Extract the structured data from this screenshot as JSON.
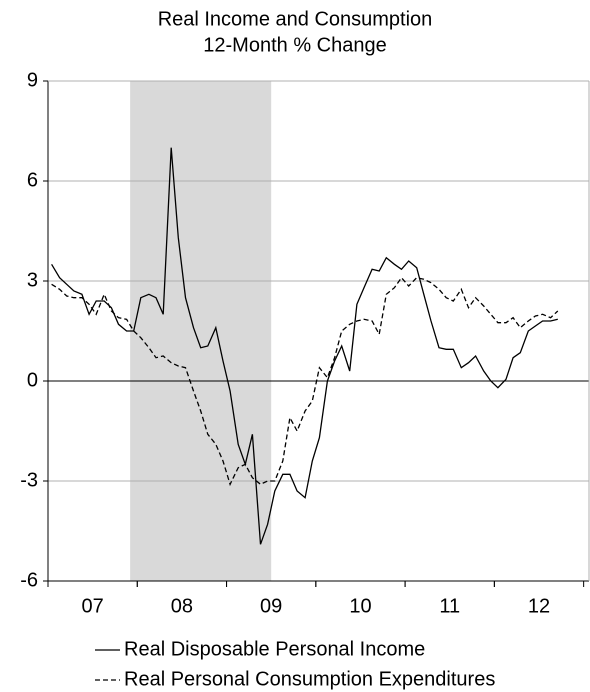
{
  "chart_data": {
    "type": "line",
    "title": "Real Income and Consumption",
    "subtitle": "12-Month % Change",
    "x": [
      2007.04,
      2007.13,
      2007.21,
      2007.29,
      2007.38,
      2007.46,
      2007.54,
      2007.63,
      2007.71,
      2007.79,
      2007.88,
      2007.96,
      2008.04,
      2008.13,
      2008.21,
      2008.29,
      2008.38,
      2008.46,
      2008.54,
      2008.63,
      2008.71,
      2008.79,
      2008.88,
      2008.96,
      2009.04,
      2009.13,
      2009.21,
      2009.29,
      2009.38,
      2009.46,
      2009.54,
      2009.63,
      2009.71,
      2009.79,
      2009.88,
      2009.96,
      2010.04,
      2010.13,
      2010.21,
      2010.29,
      2010.38,
      2010.46,
      2010.54,
      2010.63,
      2010.71,
      2010.79,
      2010.88,
      2010.96,
      2011.04,
      2011.13,
      2011.21,
      2011.29,
      2011.38,
      2011.46,
      2011.54,
      2011.63,
      2011.71,
      2011.79,
      2011.88,
      2011.96,
      2012.04,
      2012.13,
      2012.21,
      2012.29,
      2012.38,
      2012.46,
      2012.54,
      2012.63,
      2012.71
    ],
    "series": [
      {
        "name": "Real Disposable Personal Income",
        "color": "#000000",
        "style": "solid",
        "values": [
          3.5,
          3.1,
          2.9,
          2.7,
          2.6,
          2.0,
          2.4,
          2.4,
          2.2,
          1.7,
          1.5,
          1.5,
          2.5,
          2.6,
          2.5,
          2.0,
          7.0,
          4.3,
          2.5,
          1.6,
          1.0,
          1.05,
          1.6,
          0.6,
          -0.3,
          -1.9,
          -2.5,
          -1.6,
          -4.9,
          -4.3,
          -3.3,
          -2.8,
          -2.8,
          -3.3,
          -3.5,
          -2.4,
          -1.7,
          0.0,
          0.6,
          1.05,
          0.3,
          2.3,
          2.8,
          3.35,
          3.3,
          3.7,
          3.5,
          3.35,
          3.6,
          3.4,
          2.6,
          1.8,
          1.0,
          0.95,
          0.95,
          0.4,
          0.55,
          0.75,
          0.3,
          0.0,
          -0.2,
          0.05,
          0.7,
          0.85,
          1.5,
          1.65,
          1.8,
          1.8,
          1.85
        ]
      },
      {
        "name": "Real Personal Consumption Expenditures",
        "color": "#000000",
        "style": "dashed",
        "values": [
          2.9,
          2.75,
          2.55,
          2.5,
          2.5,
          2.3,
          2.0,
          2.6,
          2.1,
          1.9,
          1.85,
          1.5,
          1.3,
          1.0,
          0.7,
          0.75,
          0.55,
          0.45,
          0.4,
          -0.3,
          -0.9,
          -1.6,
          -1.9,
          -2.4,
          -3.1,
          -2.6,
          -2.5,
          -2.9,
          -3.1,
          -3.0,
          -3.0,
          -2.4,
          -1.1,
          -1.5,
          -0.9,
          -0.6,
          0.4,
          0.1,
          0.7,
          1.5,
          1.7,
          1.8,
          1.85,
          1.8,
          1.4,
          2.6,
          2.8,
          3.1,
          2.85,
          3.1,
          3.05,
          2.95,
          2.75,
          2.5,
          2.4,
          2.75,
          2.2,
          2.5,
          2.25,
          2.0,
          1.75,
          1.75,
          1.9,
          1.6,
          1.8,
          1.95,
          2.0,
          1.9,
          2.1
        ]
      }
    ],
    "recession": [
      2007.92,
      2009.5
    ],
    "xlim": [
      2007,
      2013.06
    ],
    "xticks": [
      {
        "value": 2007.5,
        "label": "07"
      },
      {
        "value": 2008.5,
        "label": "08"
      },
      {
        "value": 2009.5,
        "label": "09"
      },
      {
        "value": 2010.5,
        "label": "10"
      },
      {
        "value": 2011.5,
        "label": "11"
      },
      {
        "value": 2012.5,
        "label": "12"
      }
    ],
    "ylim": [
      -6,
      9
    ],
    "yticks": [
      -6,
      -3,
      0,
      3,
      6,
      9
    ],
    "grid": true,
    "legend": "bottom"
  }
}
